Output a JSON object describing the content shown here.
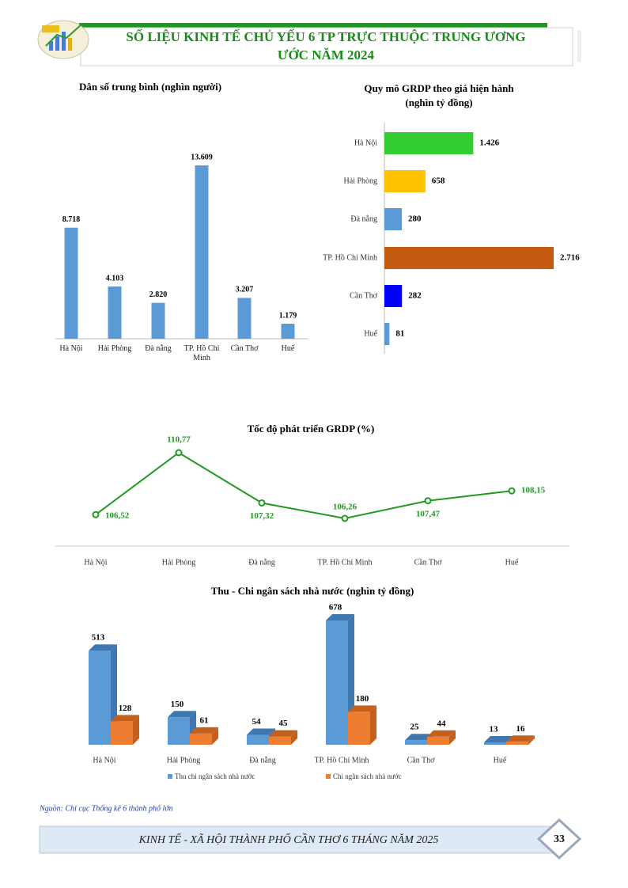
{
  "header": {
    "title_line1": "SỐ LIỆU KINH TẾ CHỦ YẾU 6 TP TRỰC THUỘC TRUNG ƯƠNG",
    "title_line2": "ƯỚC NĂM 2024"
  },
  "chart_data": [
    {
      "type": "bar",
      "title": "Dân số trung bình (nghìn người)",
      "categories": [
        "Hà Nội",
        "Hải Phòng",
        "Đà nẵng",
        "TP. Hồ Chí Minh",
        "Cần Thơ",
        "Huế"
      ],
      "values": [
        8718,
        4103,
        2820,
        13609,
        3207,
        1179
      ],
      "value_labels": [
        "8.718",
        "4.103",
        "2.820",
        "13.609",
        "3.207",
        "1.179"
      ],
      "color": "#5b9bd5"
    },
    {
      "type": "hbar",
      "title": "Quy mô GRDP theo giá hiện hành",
      "subtitle": "(nghìn tỷ đồng)",
      "categories": [
        "Hà Nội",
        "Hải Phòng",
        "Đà nẵng",
        "TP. Hồ Chí Minh",
        "Cần Thơ",
        "Huế"
      ],
      "values": [
        1426,
        658,
        280,
        2716,
        282,
        81
      ],
      "value_labels": [
        "1.426",
        "658",
        "280",
        "2.716",
        "282",
        "81"
      ],
      "colors": [
        "#33cc33",
        "#ffc000",
        "#5b9bd5",
        "#c55a11",
        "#0000ff",
        "#5b9bd5"
      ]
    },
    {
      "type": "line",
      "title": "Tốc độ phát triển GRDP (%)",
      "categories": [
        "Hà Nội",
        "Hải Phòng",
        "Đà nẵng",
        "TP. Hồ Chí Minh",
        "Cần Thơ",
        "Huế"
      ],
      "values": [
        106.52,
        110.77,
        107.32,
        106.26,
        107.47,
        108.15
      ],
      "value_labels": [
        "106,52",
        "110,77",
        "107,32",
        "106,26",
        "107,47",
        "108,15"
      ],
      "color": "#1f9a1f"
    },
    {
      "type": "bar3d",
      "title": "Thu - Chi ngân sách nhà nước (nghìn tỷ đồng)",
      "categories": [
        "Hà Nội",
        "Hải Phòng",
        "Đà nẵng",
        "TP. Hồ Chí Minh",
        "Cần Thơ",
        "Huế"
      ],
      "series": [
        {
          "name": "Thu chi ngân sách nhà nước",
          "color": "#5b9bd5",
          "values": [
            513,
            150,
            54,
            678,
            25,
            13
          ]
        },
        {
          "name": "Chi ngân sách nhà nước",
          "color": "#ed7d31",
          "values": [
            128,
            61,
            45,
            180,
            44,
            16
          ]
        }
      ]
    }
  ],
  "source": "Nguồn: Chi cục Thống kê 6 thành phố lớn",
  "footer": {
    "text": "KINH TẾ - XÃ HỘI THÀNH PHỐ CẦN THƠ 6 THÁNG NĂM 2025",
    "page": "33"
  }
}
